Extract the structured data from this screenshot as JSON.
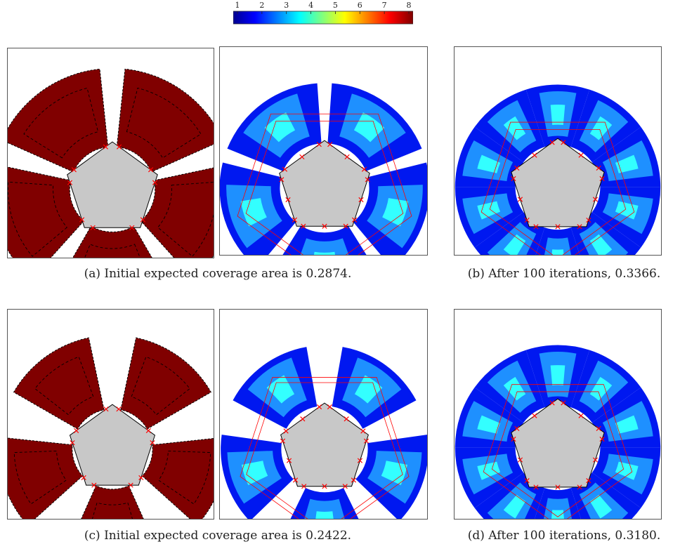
{
  "colorbar": {
    "tick_labels": [
      "1",
      "2",
      "3",
      "4",
      "5",
      "6",
      "7",
      "8"
    ],
    "colors": [
      "#00008f",
      "#0040ff",
      "#00c0ff",
      "#40ffbf",
      "#bfff40",
      "#ffc000",
      "#ff4000",
      "#8f0000"
    ]
  },
  "colors": {
    "obstacle_fill": "#c8c8c8",
    "obstacle_edge": "#000000",
    "coverage_deep_red": "#800000",
    "coverage_blue": "#0018f0",
    "coverage_mid_blue": "#1e90ff",
    "coverage_cyan": "#33ffff",
    "marker_red": "#ff0000"
  },
  "captions": {
    "a": "(a) Initial expected coverage area is 0.2874.",
    "b": "(b) After 100 iterations, 0.3366.",
    "c": "(c) Initial expected coverage area is 0.2422.",
    "d": "(d) After 100 iterations, 0.3180."
  }
}
